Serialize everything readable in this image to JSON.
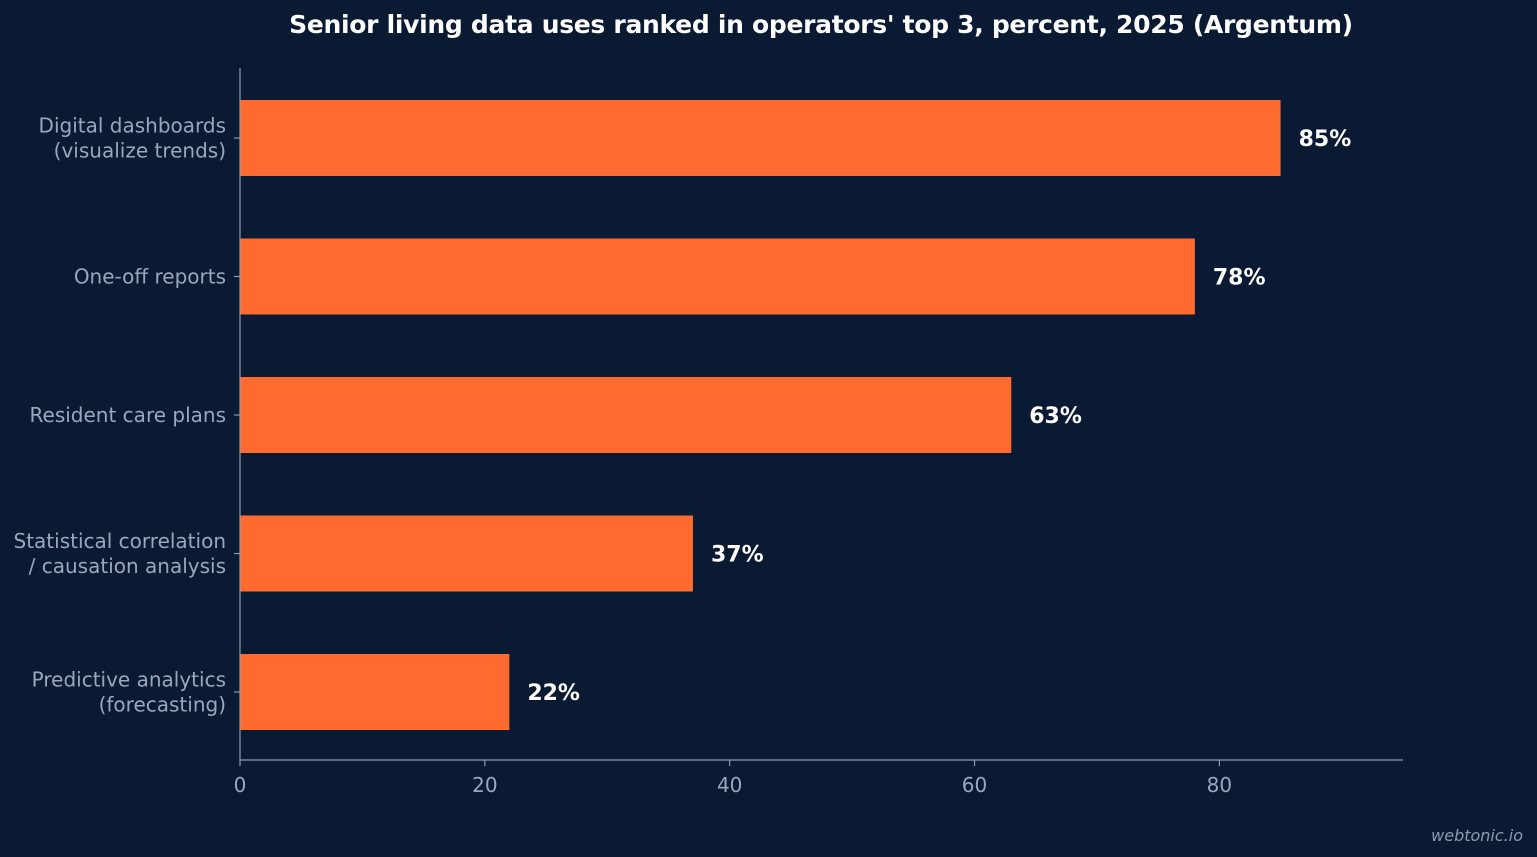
{
  "chart_data": {
    "type": "bar",
    "orientation": "horizontal",
    "title": "Senior living data uses ranked in operators' top 3, percent, 2025 (Argentum)",
    "categories": [
      [
        "Digital dashboards",
        "(visualize trends)"
      ],
      [
        "One-off reports"
      ],
      [
        "Resident care plans"
      ],
      [
        "Statistical correlation",
        "/ causation analysis"
      ],
      [
        "Predictive analytics",
        "(forecasting)"
      ]
    ],
    "values": [
      85,
      78,
      63,
      37,
      22
    ],
    "value_labels": [
      "85%",
      "78%",
      "63%",
      "37%",
      "22%"
    ],
    "xlabel": "",
    "ylabel": "",
    "xlim": [
      0,
      95
    ],
    "xticks": [
      0,
      20,
      40,
      60,
      80
    ],
    "grid": false,
    "legend": "none",
    "bar_color": "#ff6b2e",
    "axis_color": "#8f9ab0",
    "background": "#0b1a33"
  },
  "watermark": "webtonic.io"
}
